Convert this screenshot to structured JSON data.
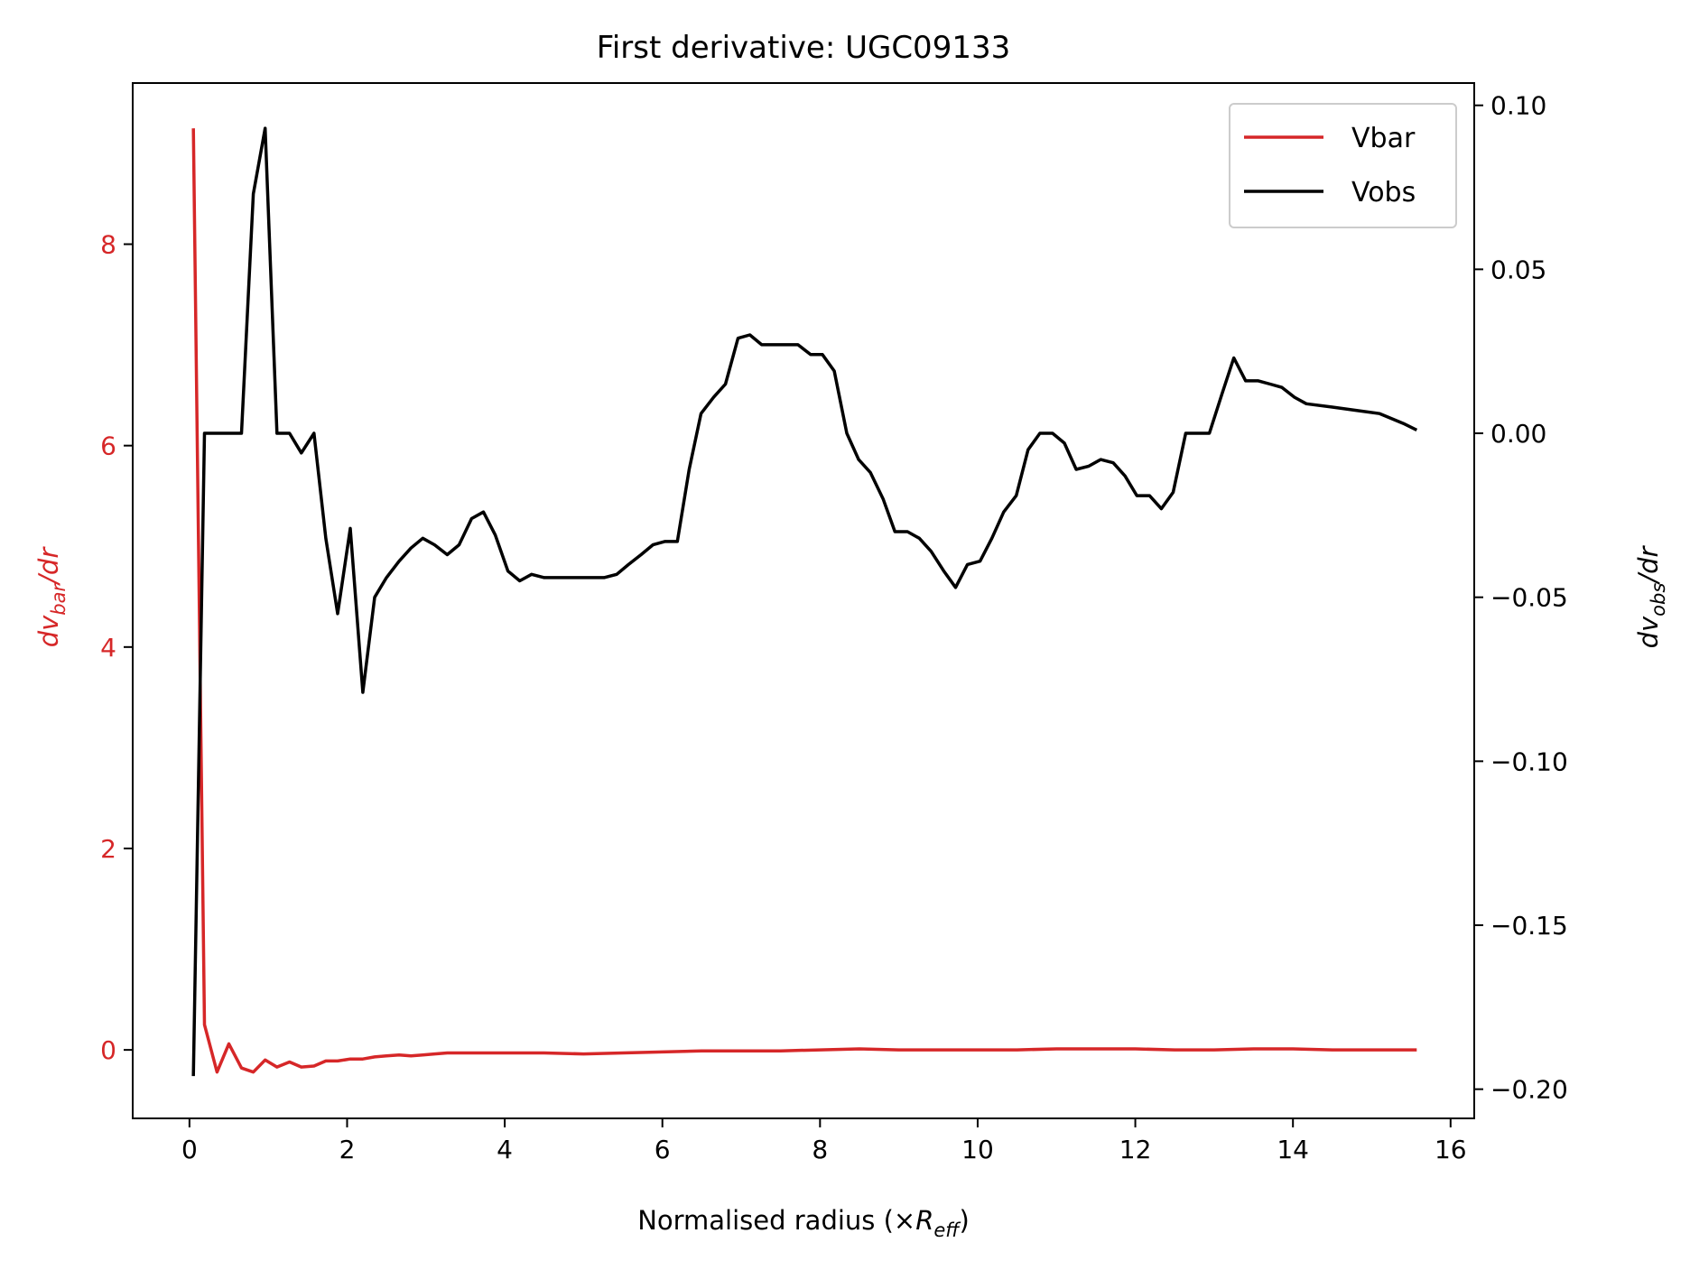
{
  "chart_data": {
    "type": "line",
    "title": "First derivative: UGC09133",
    "xlabel": "Normalised radius (×R_eff)",
    "xlabel_parts": {
      "pre": "Normalised radius (×",
      "main": "R",
      "sub": "eff",
      "post": ")"
    },
    "ylabel_left": "dv_bar/dr",
    "ylabel_left_parts": {
      "pre": "dv",
      "sub": "bar",
      "post": "/dr"
    },
    "ylabel_right": "dv_obs/dr",
    "ylabel_right_parts": {
      "pre": "dv",
      "sub": "obs",
      "post": "/dr"
    },
    "xlim": [
      -0.72,
      16.3
    ],
    "ylim_left": [
      -0.68,
      9.6
    ],
    "ylim_right": [
      -0.2089,
      0.1068
    ],
    "x_ticks": [
      0,
      2,
      4,
      6,
      8,
      10,
      12,
      14,
      16
    ],
    "x_tick_labels": [
      "0",
      "2",
      "4",
      "6",
      "8",
      "10",
      "12",
      "14",
      "16"
    ],
    "y_left_ticks": [
      0,
      2,
      4,
      6,
      8
    ],
    "y_left_tick_labels": [
      "0",
      "2",
      "4",
      "6",
      "8"
    ],
    "y_right_ticks": [
      -0.2,
      -0.15,
      -0.1,
      -0.05,
      0.0,
      0.05,
      0.1
    ],
    "y_right_tick_labels": [
      "−0.20",
      "−0.15",
      "−0.10",
      "−0.05",
      "0.00",
      "0.05",
      "0.10"
    ],
    "grid": false,
    "legend": {
      "position": "upper right",
      "entries": [
        "Vbar",
        "Vobs"
      ]
    },
    "colors": {
      "Vbar": "#d62728",
      "Vobs": "#000000",
      "left_axis": "#d62728",
      "right_axis": "#000000"
    },
    "series": [
      {
        "name": "Vbar",
        "axis": "left",
        "color": "#d62728",
        "points": [
          [
            0.05,
            9.15
          ],
          [
            0.19,
            0.25
          ],
          [
            0.35,
            -0.22
          ],
          [
            0.5,
            0.06
          ],
          [
            0.66,
            -0.18
          ],
          [
            0.81,
            -0.22
          ],
          [
            0.96,
            -0.1
          ],
          [
            1.11,
            -0.17
          ],
          [
            1.27,
            -0.12
          ],
          [
            1.42,
            -0.17
          ],
          [
            1.58,
            -0.16
          ],
          [
            1.73,
            -0.11
          ],
          [
            1.88,
            -0.11
          ],
          [
            2.04,
            -0.09
          ],
          [
            2.2,
            -0.09
          ],
          [
            2.35,
            -0.07
          ],
          [
            2.5,
            -0.06
          ],
          [
            2.66,
            -0.05
          ],
          [
            2.81,
            -0.06
          ],
          [
            2.96,
            -0.05
          ],
          [
            3.11,
            -0.04
          ],
          [
            3.27,
            -0.03
          ],
          [
            3.5,
            -0.03
          ],
          [
            4.0,
            -0.03
          ],
          [
            4.5,
            -0.03
          ],
          [
            5.0,
            -0.04
          ],
          [
            5.5,
            -0.03
          ],
          [
            6.0,
            -0.02
          ],
          [
            6.5,
            -0.01
          ],
          [
            7.0,
            -0.01
          ],
          [
            7.5,
            -0.01
          ],
          [
            8.0,
            0.0
          ],
          [
            8.5,
            0.01
          ],
          [
            9.0,
            0.0
          ],
          [
            9.5,
            0.0
          ],
          [
            10.0,
            0.0
          ],
          [
            10.5,
            0.0
          ],
          [
            11.0,
            0.01
          ],
          [
            11.5,
            0.01
          ],
          [
            12.0,
            0.01
          ],
          [
            12.5,
            0.0
          ],
          [
            13.0,
            0.0
          ],
          [
            13.5,
            0.01
          ],
          [
            14.0,
            0.01
          ],
          [
            14.5,
            0.0
          ],
          [
            15.0,
            0.0
          ],
          [
            15.57,
            0.0
          ]
        ]
      },
      {
        "name": "Vobs",
        "axis": "right",
        "color": "#000000",
        "points": [
          [
            0.05,
            -0.196
          ],
          [
            0.19,
            0.0
          ],
          [
            0.35,
            0.0
          ],
          [
            0.5,
            0.0
          ],
          [
            0.66,
            0.0
          ],
          [
            0.81,
            0.073
          ],
          [
            0.96,
            0.093
          ],
          [
            1.11,
            0.0
          ],
          [
            1.27,
            0.0
          ],
          [
            1.42,
            -0.006
          ],
          [
            1.58,
            0.0
          ],
          [
            1.73,
            -0.032
          ],
          [
            1.88,
            -0.055
          ],
          [
            2.04,
            -0.029
          ],
          [
            2.2,
            -0.079
          ],
          [
            2.35,
            -0.05
          ],
          [
            2.5,
            -0.044
          ],
          [
            2.66,
            -0.039
          ],
          [
            2.81,
            -0.035
          ],
          [
            2.96,
            -0.032
          ],
          [
            3.11,
            -0.034
          ],
          [
            3.27,
            -0.037
          ],
          [
            3.42,
            -0.034
          ],
          [
            3.58,
            -0.026
          ],
          [
            3.73,
            -0.024
          ],
          [
            3.88,
            -0.031
          ],
          [
            4.04,
            -0.042
          ],
          [
            4.19,
            -0.045
          ],
          [
            4.34,
            -0.043
          ],
          [
            4.5,
            -0.044
          ],
          [
            4.65,
            -0.044
          ],
          [
            4.8,
            -0.044
          ],
          [
            4.96,
            -0.044
          ],
          [
            5.11,
            -0.044
          ],
          [
            5.26,
            -0.044
          ],
          [
            5.42,
            -0.043
          ],
          [
            5.57,
            -0.04
          ],
          [
            5.73,
            -0.037
          ],
          [
            5.88,
            -0.034
          ],
          [
            6.03,
            -0.033
          ],
          [
            6.19,
            -0.033
          ],
          [
            6.34,
            -0.011
          ],
          [
            6.49,
            0.006
          ],
          [
            6.65,
            0.011
          ],
          [
            6.8,
            0.015
          ],
          [
            6.96,
            0.029
          ],
          [
            7.11,
            0.03
          ],
          [
            7.26,
            0.027
          ],
          [
            7.42,
            0.027
          ],
          [
            7.57,
            0.027
          ],
          [
            7.72,
            0.027
          ],
          [
            7.88,
            0.024
          ],
          [
            8.03,
            0.024
          ],
          [
            8.18,
            0.019
          ],
          [
            8.34,
            0.0
          ],
          [
            8.49,
            -0.008
          ],
          [
            8.64,
            -0.012
          ],
          [
            8.8,
            -0.02
          ],
          [
            8.95,
            -0.03
          ],
          [
            9.11,
            -0.03
          ],
          [
            9.26,
            -0.032
          ],
          [
            9.41,
            -0.036
          ],
          [
            9.57,
            -0.042
          ],
          [
            9.72,
            -0.047
          ],
          [
            9.87,
            -0.04
          ],
          [
            10.03,
            -0.039
          ],
          [
            10.18,
            -0.032
          ],
          [
            10.33,
            -0.024
          ],
          [
            10.49,
            -0.019
          ],
          [
            10.64,
            -0.005
          ],
          [
            10.79,
            0.0
          ],
          [
            10.95,
            0.0
          ],
          [
            11.1,
            -0.003
          ],
          [
            11.25,
            -0.011
          ],
          [
            11.41,
            -0.01
          ],
          [
            11.56,
            -0.008
          ],
          [
            11.72,
            -0.009
          ],
          [
            11.87,
            -0.013
          ],
          [
            12.02,
            -0.019
          ],
          [
            12.18,
            -0.019
          ],
          [
            12.33,
            -0.023
          ],
          [
            12.48,
            -0.018
          ],
          [
            12.64,
            0.0
          ],
          [
            12.79,
            0.0
          ],
          [
            12.94,
            0.0
          ],
          [
            13.1,
            0.012
          ],
          [
            13.25,
            0.023
          ],
          [
            13.4,
            0.016
          ],
          [
            13.56,
            0.016
          ],
          [
            13.71,
            0.015
          ],
          [
            13.86,
            0.014
          ],
          [
            14.02,
            0.011
          ],
          [
            14.17,
            0.009
          ],
          [
            14.5,
            0.008
          ],
          [
            14.8,
            0.007
          ],
          [
            15.1,
            0.006
          ],
          [
            15.4,
            0.003
          ],
          [
            15.57,
            0.001
          ]
        ]
      }
    ]
  }
}
